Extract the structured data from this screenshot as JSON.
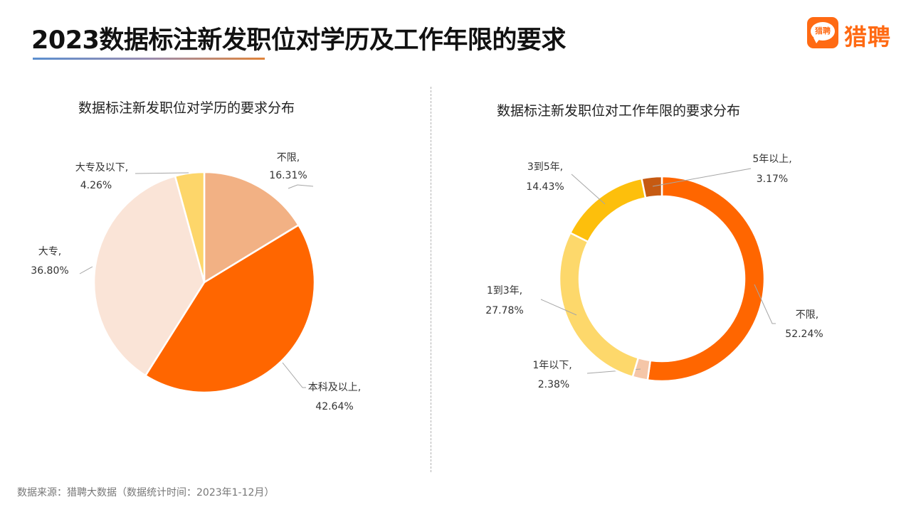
{
  "header": {
    "title": "2023数据标注新发职位对学历及工作年限的要求",
    "logo_icon_text": "猎聘",
    "logo_text": "猎聘",
    "underline_colors": [
      "#5b8fcf",
      "#e0843a"
    ]
  },
  "footer": {
    "source": "数据来源：猎聘大数据（数据统计时间：2023年1-12月）"
  },
  "chart_data": [
    {
      "type": "pie",
      "title": "数据标注新发职位对学历的要求分布",
      "unit": "%",
      "start": "top, clockwise",
      "slices": [
        {
          "label": "不限,",
          "value": 16.31,
          "value_text": "16.31%",
          "color": "#f2b184"
        },
        {
          "label": "本科及以上,",
          "value": 42.64,
          "value_text": "42.64%",
          "color": "#ff6600"
        },
        {
          "label": "大专,",
          "value": 36.8,
          "value_text": "36.80%",
          "color": "#fae4d7"
        },
        {
          "label": "大专及以下,",
          "value": 4.26,
          "value_text": "4.26%",
          "color": "#fdd66a"
        }
      ]
    },
    {
      "type": "pie",
      "subtype": "donut",
      "title": "数据标注新发职位对工作年限的要求分布",
      "unit": "%",
      "start": "top, clockwise",
      "slices": [
        {
          "label": "不限,",
          "value": 52.24,
          "value_text": "52.24%",
          "color": "#ff6600"
        },
        {
          "label": "1年以下,",
          "value": 2.38,
          "value_text": "2.38%",
          "color": "#f5c6a8"
        },
        {
          "label": "1到3年,",
          "value": 27.78,
          "value_text": "27.78%",
          "color": "#fdd86b"
        },
        {
          "label": "3到5年,",
          "value": 14.43,
          "value_text": "14.43%",
          "color": "#fdbf0c"
        },
        {
          "label": "5年以上,",
          "value": 3.17,
          "value_text": "3.17%",
          "color": "#c65a12"
        }
      ]
    }
  ]
}
